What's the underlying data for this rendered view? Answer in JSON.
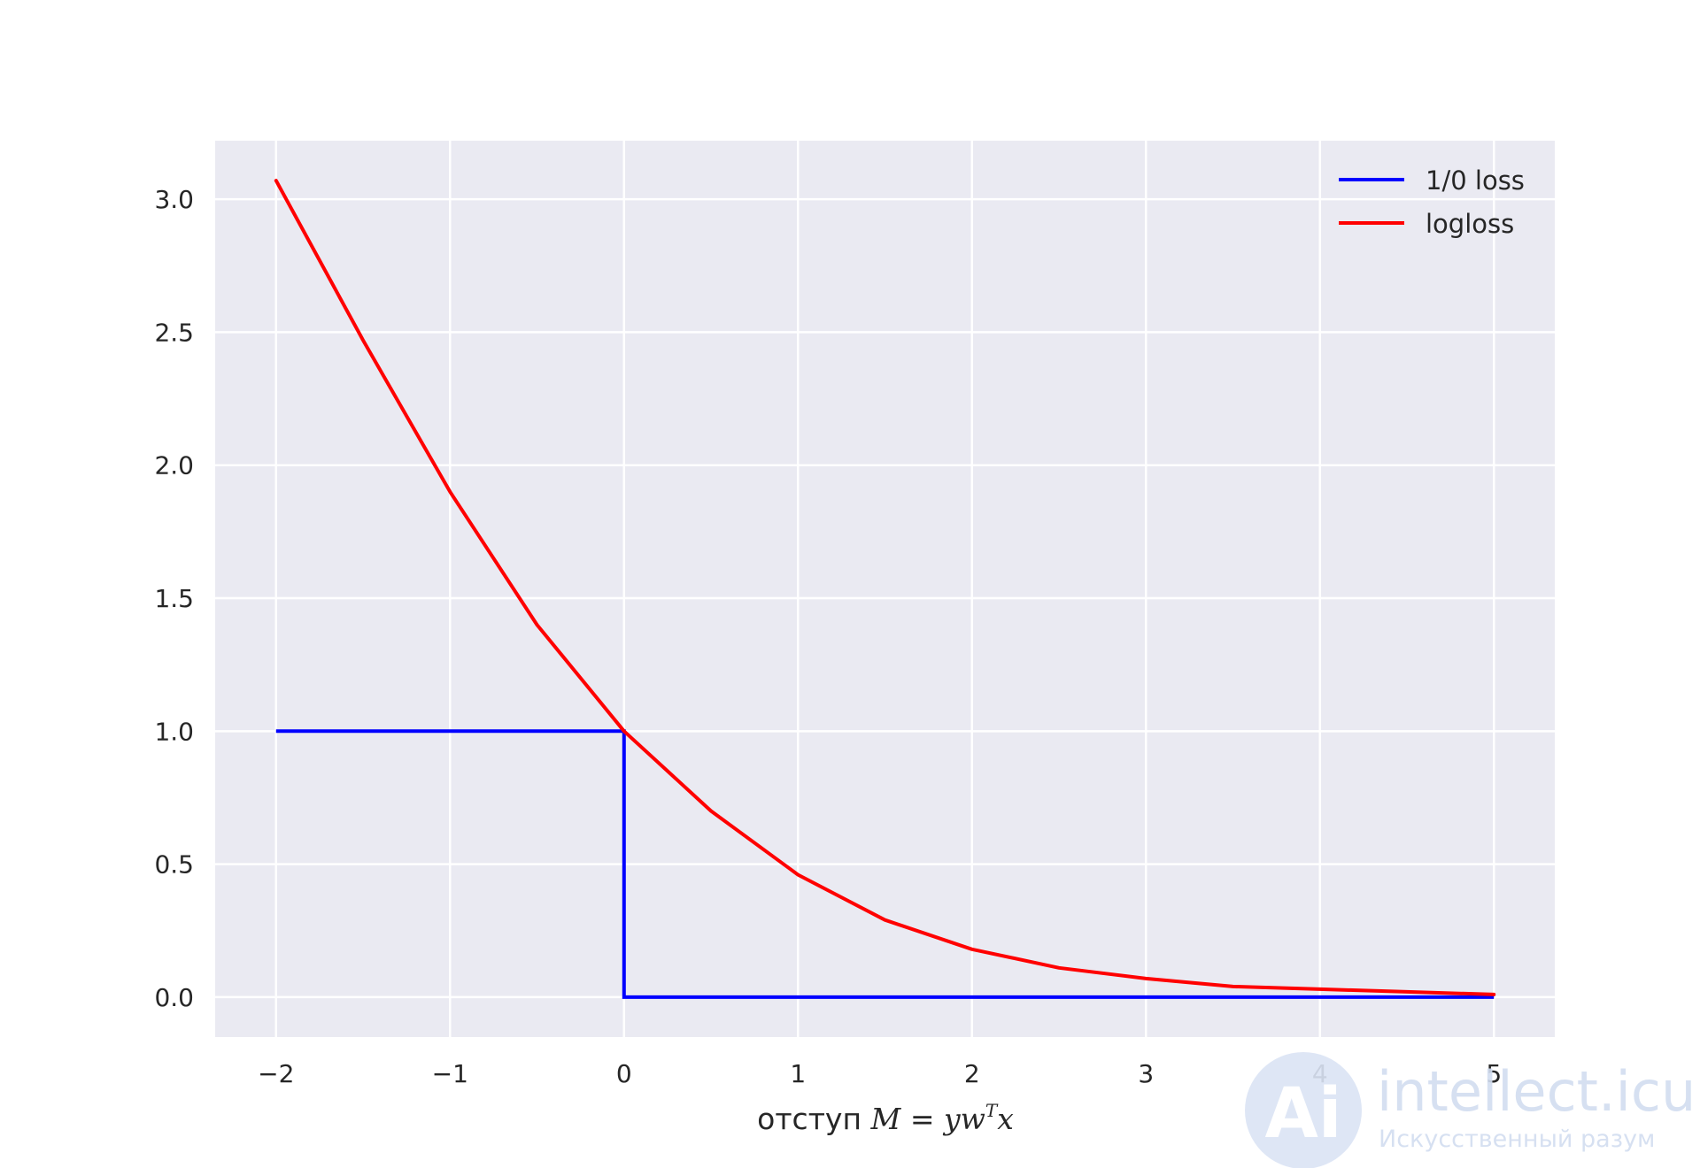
{
  "chart_data": {
    "type": "line",
    "title": "",
    "xlabel": "отступ M = yw⃗ᵀx⃗",
    "xlabel_prefix": "отступ",
    "xlabel_math": {
      "M": "M",
      "eq": " = ",
      "y": "y",
      "w": "w",
      "T": "T",
      "x": "x"
    },
    "ylabel": "",
    "xlim": [
      -2.35,
      5.35
    ],
    "ylim": [
      -0.15,
      3.22
    ],
    "xticks": [
      -2,
      -1,
      0,
      1,
      2,
      3,
      4,
      5
    ],
    "xtick_labels": [
      "−2",
      "−1",
      "0",
      "1",
      "2",
      "3",
      "4",
      "5"
    ],
    "yticks": [
      0.0,
      0.5,
      1.0,
      1.5,
      2.0,
      2.5,
      3.0
    ],
    "ytick_labels": [
      "0.0",
      "0.5",
      "1.0",
      "1.5",
      "2.0",
      "2.5",
      "3.0"
    ],
    "grid": true,
    "legend_position": "top-right",
    "series": [
      {
        "name": "1/0 loss",
        "color": "#0000ff",
        "x": [
          -2,
          0,
          0,
          5
        ],
        "y": [
          1,
          1,
          0,
          0
        ]
      },
      {
        "name": "logloss",
        "color": "#ff0000",
        "x": [
          -2,
          -1.5,
          -1,
          -0.5,
          0,
          0.5,
          1,
          1.5,
          2,
          2.5,
          3,
          3.5,
          4,
          4.5,
          5
        ],
        "y": [
          3.07,
          2.47,
          1.9,
          1.4,
          1.0,
          0.7,
          0.46,
          0.29,
          0.18,
          0.11,
          0.07,
          0.04,
          0.03,
          0.02,
          0.01
        ]
      }
    ]
  },
  "watermark": {
    "brand": "intellect.icu",
    "tagline": "Искусственный разум",
    "logo_letters": "Ai"
  }
}
